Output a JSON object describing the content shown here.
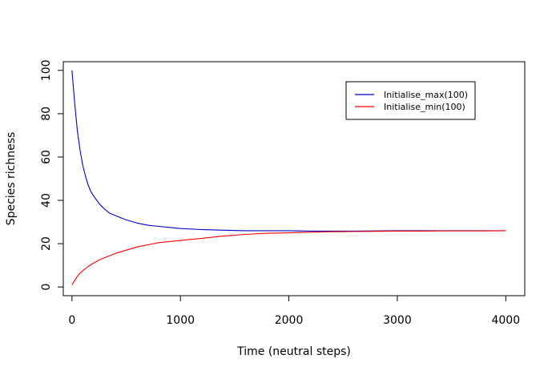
{
  "chart_data": {
    "type": "line",
    "title": "",
    "xlabel": "Time (neutral steps)",
    "ylabel": "Species richness",
    "xlim": [
      -80,
      4175
    ],
    "ylim": [
      -4,
      104
    ],
    "xticks": [
      0,
      1000,
      2000,
      3000,
      4000
    ],
    "yticks": [
      0,
      20,
      40,
      60,
      80,
      100
    ],
    "grid": false,
    "legend_position": "top-right",
    "series": [
      {
        "name": "Initialise_max(100)",
        "color": "#0000CD",
        "x": [
          0,
          25,
          50,
          75,
          100,
          125,
          150,
          175,
          200,
          250,
          300,
          350,
          400,
          450,
          500,
          600,
          700,
          800,
          900,
          1000,
          1200,
          1400,
          1600,
          1800,
          2000,
          2200,
          2400,
          2600,
          2800,
          3000,
          3200,
          3400,
          3600,
          3800,
          4000
        ],
        "y": [
          100,
          85,
          72,
          63,
          56,
          51,
          47,
          44,
          42,
          38.5,
          36,
          34,
          33,
          32,
          31,
          29.5,
          28.5,
          28,
          27.5,
          27,
          26.5,
          26.2,
          26,
          26,
          26,
          25.8,
          25.8,
          25.8,
          25.9,
          26,
          26,
          26,
          26,
          26,
          26
        ]
      },
      {
        "name": "Initialise_min(100)",
        "color": "#FF0000",
        "x": [
          0,
          25,
          50,
          75,
          100,
          150,
          200,
          250,
          300,
          400,
          500,
          600,
          700,
          800,
          1000,
          1200,
          1400,
          1600,
          1800,
          2000,
          2200,
          2400,
          2600,
          2800,
          3000,
          3200,
          3400,
          3600,
          3800,
          4000
        ],
        "y": [
          1,
          3,
          5,
          6.5,
          7.5,
          9.5,
          11,
          12.5,
          13.5,
          15.5,
          17,
          18.5,
          19.5,
          20.5,
          21.5,
          22.5,
          23.5,
          24.3,
          24.8,
          25,
          25.3,
          25.5,
          25.6,
          25.7,
          25.8,
          25.8,
          25.9,
          25.9,
          25.9,
          26
        ]
      }
    ]
  }
}
